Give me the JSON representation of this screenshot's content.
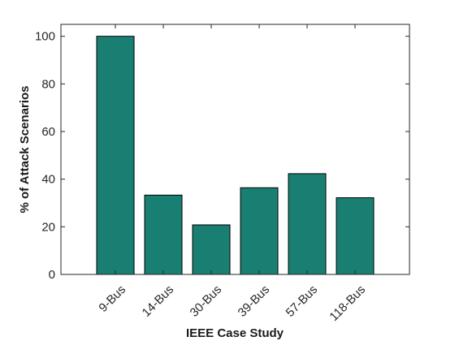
{
  "chart_data": {
    "type": "bar",
    "categories": [
      "9-Bus",
      "14-Bus",
      "30-Bus",
      "39-Bus",
      "57-Bus",
      "118-Bus"
    ],
    "values": [
      100,
      33.3,
      20.8,
      36.4,
      42.3,
      32.2
    ],
    "xlabel": "IEEE Case Study",
    "ylabel": "% of Attack Scenarios",
    "ylim": [
      0,
      105
    ],
    "yticks": [
      0,
      20,
      40,
      60,
      80,
      100
    ],
    "bar_color": "#1a7f73",
    "bar_edge_color": "#000000",
    "grid": false,
    "legend": "none"
  }
}
